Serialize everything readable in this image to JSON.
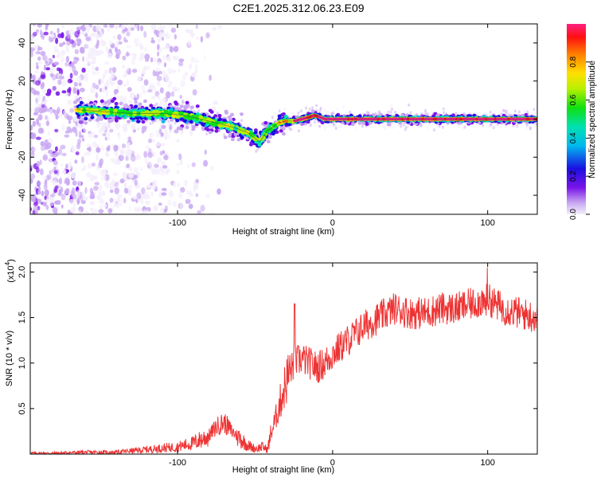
{
  "figure": {
    "title": "C2E1.2025.312.06.23.E09"
  },
  "chart_data": [
    {
      "type": "heatmap",
      "title": "C2E1.2025.312.06.23.E09",
      "xlabel": "Height of straight line (km)",
      "ylabel": "Frequency (Hz)",
      "xlim": [
        -195,
        132
      ],
      "ylim": [
        -50,
        50
      ],
      "xticks": [
        -100,
        0,
        100
      ],
      "yticks": [
        -40,
        -20,
        0,
        20,
        40
      ],
      "colorbar": {
        "label": "Normalized spectral amplitude",
        "range": [
          0,
          1
        ],
        "ticks": [
          "0.0",
          "0.2",
          "0.4",
          "0.6",
          "0.8"
        ]
      },
      "ridge": {
        "description": "frequency trace of dominant spectral peak",
        "x": [
          -165,
          -150,
          -130,
          -110,
          -95,
          -80,
          -65,
          -55,
          -47,
          -42,
          -38,
          -35,
          -30,
          -25,
          -20,
          -15,
          -12,
          -8,
          -5,
          0,
          20,
          60,
          100,
          132
        ],
        "y": [
          5,
          4,
          3,
          3,
          2,
          -1,
          -4,
          -7,
          -12,
          -6,
          -4,
          -2,
          -1,
          -1,
          0,
          1,
          2,
          1,
          0,
          0,
          0,
          0,
          0,
          0
        ]
      },
      "noise_region": {
        "x_range": [
          -195,
          -130
        ],
        "y_range": [
          -50,
          50
        ]
      }
    },
    {
      "type": "line",
      "xlabel": "Height of straight line (km)",
      "ylabel": "SNR (10 * v/v)",
      "yscale_label": "(x10",
      "yscale_exponent": "4",
      "xlim": [
        -195,
        132
      ],
      "ylim": [
        0,
        2.1
      ],
      "xticks": [
        -100,
        0,
        100
      ],
      "yticks": [
        0.5,
        1.0,
        1.5,
        2.0
      ],
      "series": [
        {
          "name": "SNR",
          "color": "#ee3333",
          "x": [
            -195,
            -180,
            -160,
            -140,
            -120,
            -100,
            -90,
            -80,
            -75,
            -70,
            -65,
            -60,
            -55,
            -50,
            -45,
            -42,
            -40,
            -35,
            -30,
            -25,
            -20,
            -15,
            -10,
            -5,
            0,
            10,
            20,
            30,
            40,
            50,
            60,
            70,
            80,
            90,
            100,
            110,
            120,
            132
          ],
          "values": [
            0.01,
            0.01,
            0.02,
            0.02,
            0.05,
            0.08,
            0.12,
            0.2,
            0.3,
            0.35,
            0.25,
            0.18,
            0.1,
            0.06,
            0.08,
            0.05,
            0.2,
            0.5,
            0.8,
            1.0,
            1.05,
            1.0,
            0.95,
            1.0,
            1.1,
            1.25,
            1.4,
            1.5,
            1.6,
            1.55,
            1.55,
            1.6,
            1.6,
            1.65,
            1.7,
            1.6,
            1.55,
            1.5
          ]
        }
      ]
    }
  ],
  "colors": {
    "snr_line": "#ee3333",
    "axis": "#000000"
  }
}
